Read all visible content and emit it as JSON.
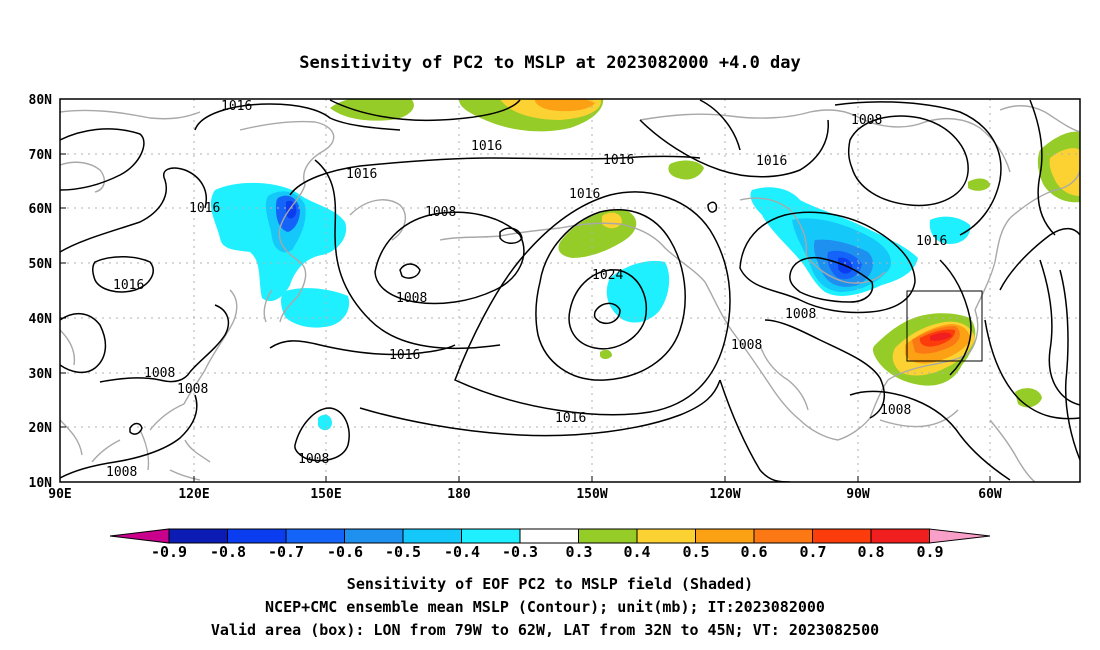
{
  "title": "Sensitivity of PC2 to MSLP at 2023082000 +4.0 day",
  "lat_labels": [
    "80N",
    "70N",
    "60N",
    "50N",
    "40N",
    "30N",
    "20N",
    "10N"
  ],
  "lon_labels": [
    "90E",
    "120E",
    "150E",
    "180",
    "150W",
    "120W",
    "90W",
    "60W"
  ],
  "contour_labels": [
    "1016",
    "1016",
    "1016",
    "1016",
    "1016",
    "1016",
    "1016",
    "1016",
    "1008",
    "1008",
    "1008",
    "1008",
    "1008",
    "1008",
    "1008",
    "1008",
    "1008",
    "1008",
    "1024",
    "1016",
    "1016",
    "1016"
  ],
  "colorbar": {
    "labels": [
      "-0.9",
      "-0.8",
      "-0.7",
      "-0.6",
      "-0.5",
      "-0.4",
      "-0.3",
      "0.3",
      "0.4",
      "0.5",
      "0.6",
      "0.7",
      "0.8",
      "0.9"
    ],
    "colors": [
      "#c8008c",
      "#0a1cb4",
      "#0a3cf0",
      "#1464fa",
      "#1e90f0",
      "#14c8fa",
      "#1ef0ff",
      "#ffffff",
      "#96cc28",
      "#fcd232",
      "#fca014",
      "#fc7814",
      "#fc3c0a",
      "#f01e1e",
      "#f8a0c8"
    ]
  },
  "valid_box": {
    "lon_from": "79W",
    "lon_to": "62W",
    "lat_from": "32N",
    "lat_to": "45N"
  },
  "caption": [
    "Sensitivity of EOF PC2 to MSLP field (Shaded)",
    "NCEP+CMC ensemble mean MSLP (Contour); unit(mb); IT:2023082000",
    "Valid area (box): LON from 79W to 62W, LAT from 32N to 45N; VT: 2023082500"
  ]
}
